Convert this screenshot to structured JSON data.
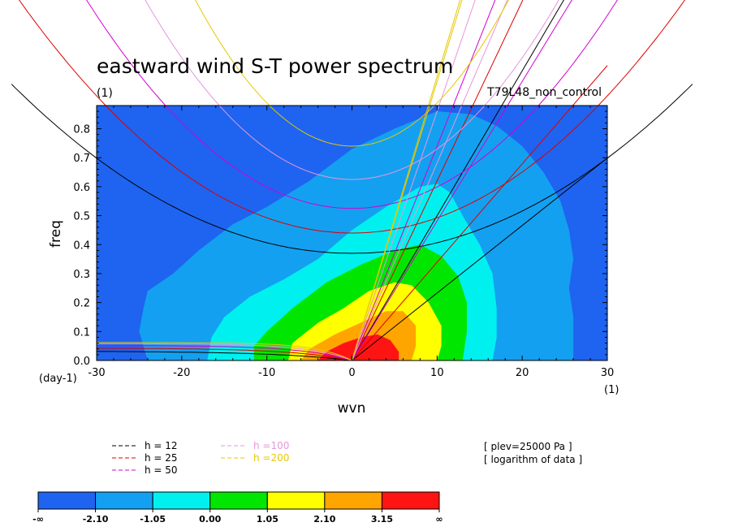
{
  "chart_data": {
    "type": "heatmap",
    "title": "eastward wind S-T power spectrum",
    "units_left": "(1)",
    "experiment": "T79L48_non_control",
    "xlabel": "wvn",
    "ylabel": "freq",
    "x_unit_label": "(1)",
    "y_unit_label": "(day-1)",
    "xlim": [
      -30,
      30
    ],
    "ylim": [
      0,
      0.88
    ],
    "xticks": [
      "-30",
      "-20",
      "-10",
      "0",
      "10",
      "20",
      "30"
    ],
    "yticks": [
      "0.0",
      "0.1",
      "0.2",
      "0.3",
      "0.4",
      "0.5",
      "0.6",
      "0.7",
      "0.8"
    ],
    "contour_levels": [
      -2.1,
      -1.05,
      0.0,
      1.05,
      2.1,
      3.15
    ],
    "colorbar_labels": [
      "-∞",
      "-2.10",
      "-1.05",
      "0.00",
      "1.05",
      "2.10",
      "3.15",
      "∞"
    ],
    "colors": [
      "#1e64f0",
      "#14a0f0",
      "#00f0f0",
      "#00e600",
      "#ffff00",
      "#ffa500",
      "#ff1414"
    ],
    "regions": [
      {
        "level": "-2.10",
        "points": [
          [
            -24,
            0
          ],
          [
            -25,
            0.1
          ],
          [
            -24.5,
            0.18
          ],
          [
            -24,
            0.24
          ],
          [
            -21,
            0.3
          ],
          [
            -18,
            0.38
          ],
          [
            -14,
            0.47
          ],
          [
            -10,
            0.53
          ],
          [
            -5,
            0.62
          ],
          [
            0,
            0.73
          ],
          [
            5,
            0.8
          ],
          [
            10,
            0.86
          ],
          [
            14,
            0.85
          ],
          [
            17,
            0.81
          ],
          [
            20,
            0.74
          ],
          [
            22.5,
            0.65
          ],
          [
            24.5,
            0.55
          ],
          [
            25.5,
            0.45
          ],
          [
            26,
            0.35
          ],
          [
            25.5,
            0.25
          ],
          [
            26,
            0.15
          ],
          [
            26,
            0
          ]
        ]
      },
      {
        "level": "-1.05",
        "points": [
          [
            -17,
            0
          ],
          [
            -16.5,
            0.08
          ],
          [
            -15,
            0.15
          ],
          [
            -12,
            0.22
          ],
          [
            -8,
            0.28
          ],
          [
            -4,
            0.35
          ],
          [
            0,
            0.45
          ],
          [
            4,
            0.53
          ],
          [
            8,
            0.6
          ],
          [
            10,
            0.61
          ],
          [
            11.5,
            0.58
          ],
          [
            13,
            0.5
          ],
          [
            15,
            0.4
          ],
          [
            16.5,
            0.3
          ],
          [
            17,
            0.18
          ],
          [
            17,
            0.08
          ],
          [
            16.5,
            0
          ]
        ]
      },
      {
        "level": "0.00",
        "points": [
          [
            -11.5,
            0
          ],
          [
            -11.5,
            0.05
          ],
          [
            -10,
            0.1
          ],
          [
            -7,
            0.18
          ],
          [
            -3,
            0.27
          ],
          [
            1,
            0.33
          ],
          [
            5,
            0.38
          ],
          [
            8,
            0.4
          ],
          [
            10.5,
            0.36
          ],
          [
            12.5,
            0.29
          ],
          [
            13.5,
            0.2
          ],
          [
            13.5,
            0.1
          ],
          [
            13,
            0
          ]
        ]
      },
      {
        "level": "1.05",
        "points": [
          [
            -7.5,
            0
          ],
          [
            -7,
            0.06
          ],
          [
            -4,
            0.13
          ],
          [
            -1,
            0.18
          ],
          [
            2,
            0.24
          ],
          [
            5,
            0.27
          ],
          [
            7,
            0.26
          ],
          [
            9,
            0.2
          ],
          [
            10.5,
            0.12
          ],
          [
            10.5,
            0.05
          ],
          [
            10,
            0
          ]
        ]
      },
      {
        "level": "2.10",
        "points": [
          [
            -6,
            0
          ],
          [
            -5,
            0.04
          ],
          [
            -2,
            0.09
          ],
          [
            1,
            0.13
          ],
          [
            4,
            0.17
          ],
          [
            6,
            0.17
          ],
          [
            7.5,
            0.12
          ],
          [
            7.5,
            0.05
          ],
          [
            7,
            0
          ]
        ]
      },
      {
        "level": "3.15",
        "points": [
          [
            -4,
            0
          ],
          [
            -3,
            0.03
          ],
          [
            -1,
            0.06
          ],
          [
            1,
            0.08
          ],
          [
            3,
            0.09
          ],
          [
            4.5,
            0.07
          ],
          [
            5.5,
            0.03
          ],
          [
            5.5,
            0
          ]
        ]
      }
    ],
    "curves": [
      {
        "name": "h = 12",
        "color": "#000000",
        "dash": false,
        "sym_min": 0.37,
        "sym_c": 0.000365,
        "eig_a": 0.0325,
        "eig_k": 0.11,
        "kelvin_slope": 0.0233
      },
      {
        "name": "h = 25",
        "color": "#dc0000",
        "dash": false,
        "sym_min": 0.44,
        "sym_c": 0.000526,
        "eig_a": 0.043,
        "eig_k": 0.14,
        "kelvin_slope": 0.0336
      },
      {
        "name": "h = 50",
        "color": "#d200d2",
        "dash": false,
        "sym_min": 0.525,
        "sym_c": 0.00074,
        "eig_a": 0.052,
        "eig_k": 0.17,
        "kelvin_slope": 0.0475
      },
      {
        "name": "h =100",
        "color": "#e696dc",
        "dash": true,
        "sym_min": 0.625,
        "sym_c": 0.00105,
        "eig_a": 0.058,
        "eig_k": 0.2,
        "kelvin_slope": 0.0672
      },
      {
        "name": "h =200",
        "color": "#e6c800",
        "dash": true,
        "sym_min": 0.74,
        "sym_c": 0.00149,
        "eig_a": 0.062,
        "eig_k": 0.24,
        "kelvin_slope": 0.095
      }
    ],
    "legend_right": [
      "[ plev=25000 Pa ]",
      "[ logarithm of data ]"
    ]
  }
}
